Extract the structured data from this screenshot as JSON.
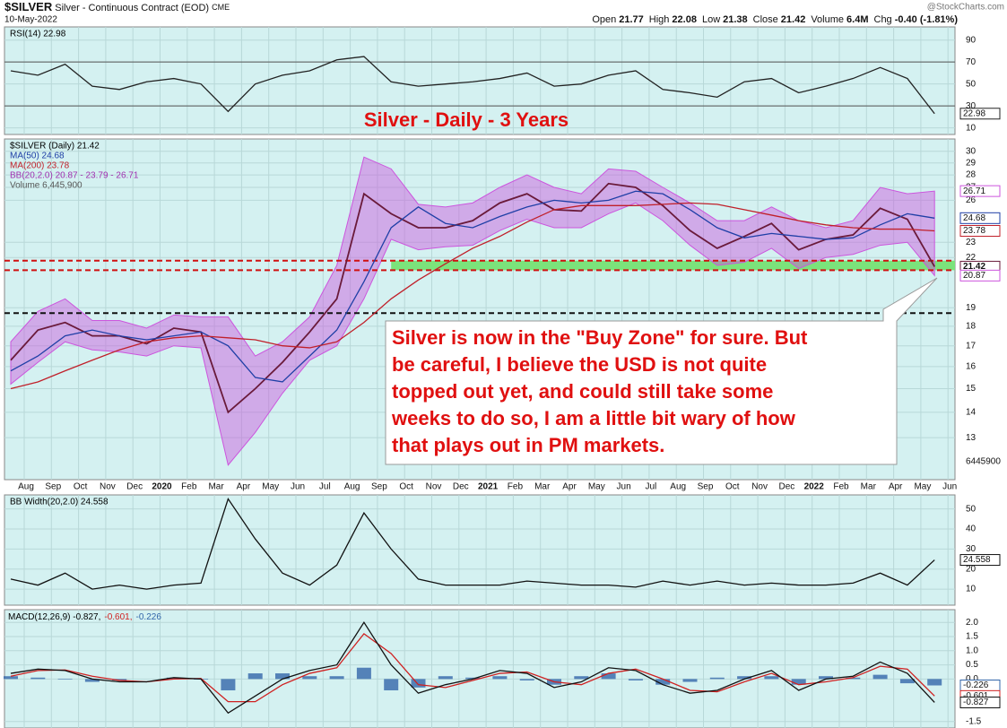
{
  "header": {
    "symbol": "$SILVER",
    "name": "Silver - Continuous Contract (EOD)",
    "exchange": "CME",
    "date": "10-May-2022",
    "source": "@StockCharts.com",
    "quote": [
      {
        "label": "Open",
        "value": "21.77"
      },
      {
        "label": "High",
        "value": "22.08"
      },
      {
        "label": "Low",
        "value": "21.38"
      },
      {
        "label": "Close",
        "value": "21.42"
      },
      {
        "label": "Volume",
        "value": "6.4M"
      },
      {
        "label": "Chg",
        "value": "-0.40 (-1.81%)"
      }
    ]
  },
  "chart_data": [
    {
      "type": "line",
      "legend": [
        {
          "text": "RSI(14) 22.98",
          "color": "#000000"
        }
      ],
      "ylim": [
        4,
        102
      ],
      "yticks": [
        10,
        30,
        50,
        70,
        90
      ],
      "hlines": [
        {
          "value": 70,
          "color": "#555555",
          "dash": false
        },
        {
          "value": 30,
          "color": "#555555",
          "dash": false
        }
      ],
      "series": [
        {
          "name": "RSI(14)",
          "color": "#222222",
          "values": [
            62,
            58,
            68,
            48,
            45,
            52,
            55,
            50,
            25,
            50,
            58,
            62,
            72,
            75,
            52,
            48,
            50,
            52,
            55,
            60,
            48,
            50,
            58,
            62,
            45,
            42,
            38,
            52,
            55,
            42,
            48,
            55,
            65,
            55,
            22.98
          ]
        }
      ]
    },
    {
      "type": "line",
      "log": true,
      "ylim": [
        11.5,
        31.1
      ],
      "yticks": [
        13,
        14,
        15,
        16,
        17,
        18,
        19,
        22,
        23,
        26,
        27,
        28,
        29,
        30
      ],
      "title": "Silver - Daily - 3 Years",
      "categories": [
        "Aug",
        "Sep",
        "Oct",
        "Nov",
        "Dec",
        "2020",
        "Feb",
        "Mar",
        "Apr",
        "May",
        "Jun",
        "Jul",
        "Aug",
        "Sep",
        "Oct",
        "Nov",
        "Dec",
        "2021",
        "Feb",
        "Mar",
        "Apr",
        "May",
        "Jun",
        "Jul",
        "Aug",
        "Sep",
        "Oct",
        "Nov",
        "Dec",
        "2022",
        "Feb",
        "Mar",
        "Apr",
        "May",
        "Jun"
      ],
      "legend": [
        {
          "text": "$SILVER (Daily) 21.42",
          "color": "#000000"
        },
        {
          "text": "MA(50) 24.68",
          "color": "#1f3fa6"
        },
        {
          "text": "MA(200) 23.78",
          "color": "#c0202a"
        },
        {
          "text": "BB(20,2.0) 20.87 - 23.79 - 26.71",
          "color": "#a030b0"
        },
        {
          "text": "Volume 6,445,900",
          "color": "#555555"
        }
      ],
      "volume_label": 6445900,
      "zones": [
        {
          "from": 21.2,
          "to": 21.8,
          "color": "#7be37b"
        }
      ],
      "hlines": [
        {
          "value": 21.8,
          "color": "#d01010",
          "dash": true
        },
        {
          "value": 21.2,
          "color": "#d01010",
          "dash": true
        },
        {
          "value": 18.7,
          "color": "#111111",
          "dash": true
        }
      ],
      "band": {
        "color": "#cc55dd",
        "upper": [
          17.2,
          18.8,
          19.5,
          18.3,
          18.3,
          17.9,
          18.6,
          18.5,
          18.5,
          16.5,
          17.2,
          18.5,
          21.5,
          29.5,
          28.5,
          25.7,
          25.5,
          25.8,
          27.0,
          28.0,
          27.0,
          26.5,
          28.5,
          28.3,
          27.0,
          25.8,
          24.5,
          24.5,
          25.5,
          24.5,
          24.0,
          24.5,
          27.0,
          26.5,
          26.71
        ],
        "lower": [
          15.2,
          16.2,
          17.2,
          16.8,
          16.7,
          16.5,
          17.0,
          16.9,
          12.0,
          13.2,
          14.8,
          16.3,
          17.0,
          19.5,
          23.2,
          22.5,
          22.7,
          22.8,
          23.8,
          24.6,
          24.0,
          24.0,
          25.0,
          25.8,
          24.5,
          22.8,
          21.5,
          21.7,
          22.6,
          21.3,
          22.0,
          22.2,
          22.8,
          23.0,
          20.87
        ]
      },
      "series": [
        {
          "name": "$SILVER (Daily)",
          "color": "#6a1a3a",
          "values": [
            16.3,
            17.8,
            18.2,
            17.5,
            17.5,
            17.1,
            17.9,
            17.7,
            14.0,
            15.0,
            16.2,
            17.7,
            19.5,
            26.5,
            25.0,
            24.0,
            24.0,
            24.5,
            25.8,
            26.5,
            25.3,
            25.2,
            27.3,
            27.0,
            25.6,
            23.8,
            22.6,
            23.4,
            24.3,
            22.5,
            23.2,
            23.5,
            25.4,
            24.6,
            21.42
          ]
        },
        {
          "name": "MA(50)",
          "color": "#1f3fa6",
          "values": [
            15.8,
            16.5,
            17.5,
            17.8,
            17.5,
            17.3,
            17.5,
            17.7,
            17.0,
            15.5,
            15.3,
            16.5,
            17.8,
            20.5,
            24.0,
            25.5,
            24.3,
            24.0,
            24.8,
            25.5,
            26.0,
            25.8,
            26.0,
            26.7,
            26.5,
            25.3,
            24.0,
            23.3,
            23.6,
            23.4,
            23.2,
            23.3,
            24.2,
            25.0,
            24.68
          ]
        },
        {
          "name": "MA(200)",
          "color": "#c0202a",
          "values": [
            15.0,
            15.3,
            15.8,
            16.3,
            16.8,
            17.2,
            17.4,
            17.5,
            17.4,
            17.3,
            17.0,
            16.9,
            17.2,
            18.2,
            19.5,
            20.6,
            21.6,
            22.6,
            23.4,
            24.4,
            25.3,
            25.6,
            25.6,
            25.6,
            25.7,
            25.8,
            25.7,
            25.3,
            24.9,
            24.5,
            24.2,
            24.0,
            23.9,
            23.9,
            23.78
          ]
        }
      ],
      "callout": [
        "Silver is now in the \"Buy Zone\" for sure. But",
        "be careful, I believe the USD is not quite",
        "topped out yet, and could still take some",
        "weeks to do so, I am a little bit wary of how",
        "that plays out in PM markets."
      ]
    },
    {
      "type": "line",
      "legend": [
        {
          "text": "BB Width(20,2.0) 24.558",
          "color": "#000000"
        }
      ],
      "ylim": [
        2,
        57
      ],
      "yticks": [
        10,
        20,
        30,
        40,
        50
      ],
      "series": [
        {
          "name": "BB Width(20,2.0)",
          "color": "#111111",
          "values": [
            15,
            12,
            18,
            10,
            12,
            10,
            12,
            13,
            55,
            35,
            18,
            12,
            22,
            48,
            30,
            15,
            12,
            12,
            12,
            14,
            13,
            12,
            12,
            11,
            14,
            12,
            14,
            12,
            13,
            12,
            12,
            13,
            18,
            12,
            24.558
          ]
        }
      ]
    },
    {
      "type": "line",
      "legend_inline": true,
      "legend": [
        {
          "text": "MACD(12,26,9) -0.827,",
          "color": "#000000"
        },
        {
          "text": "-0.601,",
          "color": "#d02020"
        },
        {
          "text": "-0.226",
          "color": "#3366aa"
        }
      ],
      "ylim": [
        -1.73,
        2.45
      ],
      "yticks": [
        {
          "value": 2,
          "label": "2.0"
        },
        {
          "value": 1.5,
          "label": "1.5"
        },
        {
          "value": 1,
          "label": "1.0"
        },
        {
          "value": 0.5,
          "label": "0.5"
        },
        {
          "value": 0,
          "label": "0.0"
        },
        {
          "value": -1.5,
          "label": "-1.5"
        }
      ],
      "series": [
        {
          "name": "Histogram",
          "kind": "bar",
          "color": "#3366aa",
          "values": [
            0.1,
            0.05,
            -0.02,
            -0.1,
            -0.05,
            0,
            0.05,
            -0.02,
            -0.4,
            0.2,
            0.2,
            0.1,
            0.1,
            0.4,
            -0.4,
            -0.3,
            0.1,
            0.05,
            0.1,
            -0.05,
            -0.2,
            0.1,
            0.2,
            -0.05,
            -0.2,
            -0.1,
            0.05,
            0.1,
            0.1,
            -0.2,
            0.1,
            0.05,
            0.15,
            -0.15,
            -0.226
          ]
        },
        {
          "name": "Signal",
          "color": "#d02020",
          "values": [
            0.1,
            0.3,
            0.32,
            0.1,
            -0.05,
            -0.1,
            0.0,
            0.02,
            -0.8,
            -0.8,
            -0.2,
            0.2,
            0.4,
            1.6,
            0.9,
            -0.2,
            -0.3,
            -0.05,
            0.2,
            0.25,
            -0.1,
            -0.2,
            0.2,
            0.35,
            0.0,
            -0.4,
            -0.45,
            -0.1,
            0.2,
            -0.2,
            -0.1,
            0.05,
            0.45,
            0.35,
            -0.601
          ]
        },
        {
          "name": "MACD(12,26,9)",
          "color": "#111111",
          "values": [
            0.2,
            0.35,
            0.3,
            0.0,
            -0.1,
            -0.1,
            0.05,
            0.0,
            -1.2,
            -0.6,
            0.0,
            0.3,
            0.5,
            2.0,
            0.5,
            -0.5,
            -0.2,
            0.0,
            0.3,
            0.2,
            -0.3,
            -0.1,
            0.4,
            0.3,
            -0.2,
            -0.5,
            -0.4,
            0.0,
            0.3,
            -0.4,
            0.0,
            0.1,
            0.6,
            0.2,
            -0.827
          ]
        }
      ]
    }
  ]
}
